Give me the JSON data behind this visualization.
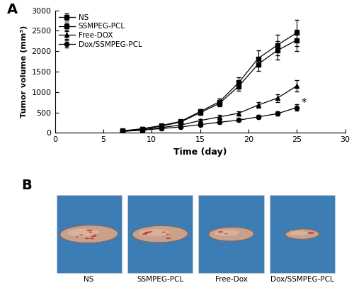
{
  "xlabel": "Time (day)",
  "ylabel": "Tumor volume (mm³)",
  "xlim": [
    0,
    30
  ],
  "ylim": [
    0,
    3000
  ],
  "xticks": [
    0,
    5,
    10,
    15,
    20,
    25,
    30
  ],
  "yticks": [
    0,
    500,
    1000,
    1500,
    2000,
    2500,
    3000
  ],
  "days": [
    7,
    9,
    11,
    13,
    15,
    17,
    19,
    21,
    23,
    25
  ],
  "NS": [
    50,
    100,
    180,
    280,
    520,
    760,
    1230,
    1820,
    2150,
    2450
  ],
  "NS_err": [
    8,
    15,
    30,
    40,
    60,
    80,
    130,
    200,
    250,
    320
  ],
  "SSMPEG_PCL": [
    45,
    90,
    165,
    265,
    490,
    720,
    1140,
    1680,
    2020,
    2270
  ],
  "SSMPEG_PCL_err": [
    7,
    12,
    25,
    35,
    55,
    75,
    110,
    160,
    220,
    260
  ],
  "Free_DOX": [
    40,
    75,
    130,
    190,
    300,
    390,
    480,
    680,
    850,
    1150
  ],
  "Free_DOX_err": [
    6,
    10,
    18,
    25,
    35,
    45,
    55,
    70,
    90,
    140
  ],
  "Dox_SSMPEG_PCL": [
    35,
    65,
    105,
    145,
    200,
    260,
    310,
    390,
    470,
    620
  ],
  "Dox_SSMPEG_PCL_err": [
    5,
    8,
    14,
    18,
    25,
    30,
    35,
    45,
    55,
    75
  ],
  "legend_labels": [
    "NS",
    "SSMPEG-PCL",
    "Free-DOX",
    "Dox/SSMPEG-PCL"
  ],
  "markers": [
    "s",
    "s",
    "^",
    "o"
  ],
  "asterisk_x": 25.5,
  "asterisk_y": 730,
  "background_color": "#ffffff",
  "panel_B_bg": "#3d7db5",
  "tumor_photos_labels": [
    "NS",
    "SSMPEG-PCL",
    "Free-Dox",
    "Dox/SSMPEG-PCL"
  ]
}
